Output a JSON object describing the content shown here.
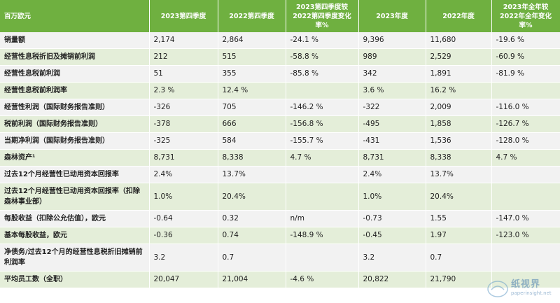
{
  "table": {
    "headers": [
      "百万欧元",
      "2023第四季度",
      "2022第四季度",
      "2023第四季度较2022第四季度变化率%",
      "2023年度",
      "2022年度",
      "2023年全年较2022年全年变化率%"
    ],
    "rows": [
      {
        "label": "销量额",
        "q4_2023": "2,174",
        "q4_2022": "2,864",
        "q4_change": "-24.1 %",
        "fy_2023": "9,396",
        "fy_2022": "11,680",
        "fy_change": "-19.6 %"
      },
      {
        "label": "经营性息税折旧及摊销前利润",
        "q4_2023": "212",
        "q4_2022": "515",
        "q4_change": "-58.8 %",
        "fy_2023": "989",
        "fy_2022": "2,529",
        "fy_change": "-60.9 %"
      },
      {
        "label": "经营性息税前利润",
        "q4_2023": "51",
        "q4_2022": "355",
        "q4_change": "-85.8 %",
        "fy_2023": "342",
        "fy_2022": "1,891",
        "fy_change": "-81.9 %"
      },
      {
        "label": "经营性息税前利润率",
        "q4_2023": "2.3 %",
        "q4_2022": "12.4 %",
        "q4_change": "",
        "fy_2023": "3.6 %",
        "fy_2022": "16.2 %",
        "fy_change": ""
      },
      {
        "label": "经营性利润（国际财务报告准则）",
        "q4_2023": "-326",
        "q4_2022": "705",
        "q4_change": "-146.2 %",
        "fy_2023": "-322",
        "fy_2022": "2,009",
        "fy_change": "-116.0 %"
      },
      {
        "label": "税前利润（国际财务报告准则）",
        "q4_2023": "-378",
        "q4_2022": "666",
        "q4_change": "-156.8 %",
        "fy_2023": "-495",
        "fy_2022": "1,858",
        "fy_change": "-126.7 %"
      },
      {
        "label": "当期净利润（国际财务报告准则）",
        "q4_2023": "-325",
        "q4_2022": "584",
        "q4_change": "-155.7 %",
        "fy_2023": "-431",
        "fy_2022": "1,536",
        "fy_change": "-128.0 %"
      },
      {
        "label": "森林资产¹",
        "q4_2023": "8,731",
        "q4_2022": "8,338",
        "q4_change": "4.7 %",
        "fy_2023": "8,731",
        "fy_2022": "8,338",
        "fy_change": "4.7 %"
      },
      {
        "label": "过去12个月经营性已动用资本回报率",
        "q4_2023": "2.4%",
        "q4_2022": "13.7%",
        "q4_change": "",
        "fy_2023": "2.4%",
        "fy_2022": "13.7%",
        "fy_change": ""
      },
      {
        "label": "过去12个月经营性已动用资本回报率（扣除森林事业部）",
        "q4_2023": "1.0%",
        "q4_2022": "20.4%",
        "q4_change": "",
        "fy_2023": "1.0%",
        "fy_2022": "20.4%",
        "fy_change": ""
      },
      {
        "label": "每股收益（扣除公允估值），欧元",
        "q4_2023": "-0.64",
        "q4_2022": "0.32",
        "q4_change": "n/m",
        "fy_2023": "-0.73",
        "fy_2022": "1.55",
        "fy_change": "-147.0 %"
      },
      {
        "label": "基本每股收益，欧元",
        "q4_2023": "-0.36",
        "q4_2022": "0.74",
        "q4_change": "-148.9 %",
        "fy_2023": "-0.45",
        "fy_2022": "1.97",
        "fy_change": "-123.0 %"
      },
      {
        "label": "净债务/过去12个月的经营性息税折旧摊销前利润率",
        "q4_2023": "3.2",
        "q4_2022": "0.7",
        "q4_change": "",
        "fy_2023": "3.2",
        "fy_2022": "0.7",
        "fy_change": ""
      },
      {
        "label": "平均员工数（全职）",
        "q4_2023": "20,047",
        "q4_2022": "21,004",
        "q4_change": "-4.6 %",
        "fy_2023": "20,822",
        "fy_2022": "21,790",
        "fy_change": ""
      }
    ]
  },
  "watermark": {
    "name": "纸视界",
    "url": "paperinsight.net"
  }
}
